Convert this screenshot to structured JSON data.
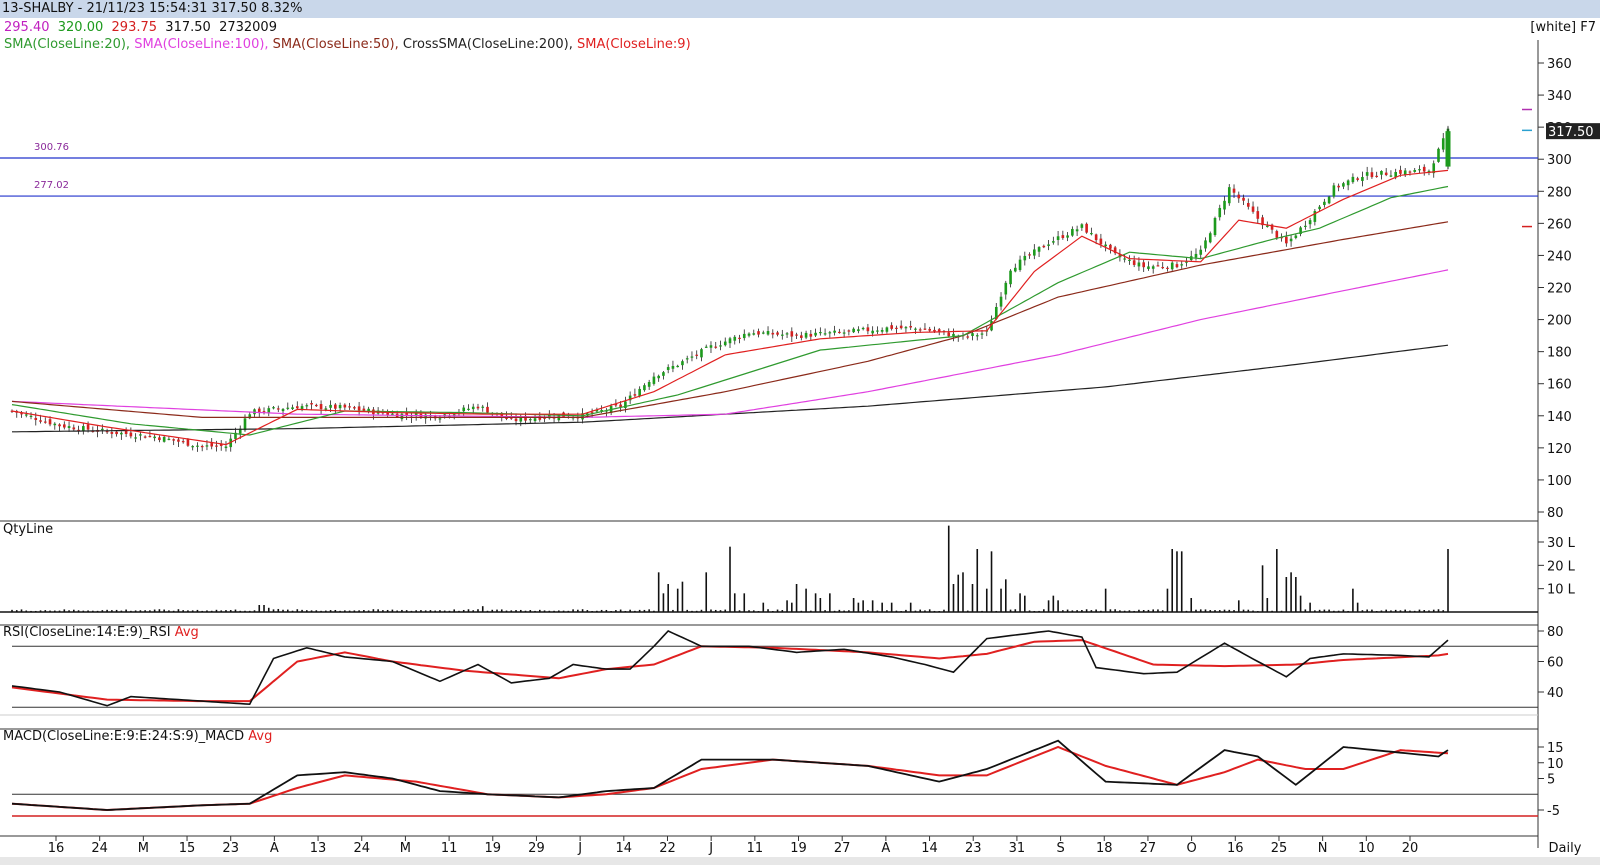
{
  "window": {
    "title": "13-SHALBY - 21/11/23 15:54:31 317.50 8.32%",
    "theme": "[white] F7"
  },
  "quote": {
    "open": "295.40",
    "high": "320.00",
    "low": "293.75",
    "close": "317.50",
    "volume": "2732009"
  },
  "indicators": [
    {
      "label": "SMA(CloseLine:20)",
      "color": "#2f9a2f"
    },
    {
      "label": "SMA(CloseLine:100)",
      "color": "#e040e0"
    },
    {
      "label": "SMA(CloseLine:50)",
      "color": "#8b2a1a"
    },
    {
      "label": "CrossSMA(CloseLine:200)",
      "color": "#222222"
    },
    {
      "label": "SMA(CloseLine:9)",
      "color": "#e02020"
    }
  ],
  "colors": {
    "up": "#1d9a1d",
    "down": "#d42020",
    "hline": "#2233cc",
    "sma9": "#e02020",
    "sma20": "#2f9a2f",
    "sma50": "#8b2a1a",
    "sma100": "#e040e0",
    "sma200": "#222222",
    "rsi": "#111111",
    "rsiavg": "#e02020"
  },
  "panels": {
    "volume": "QtyLine",
    "rsi": "RSI(CloseLine:14:E:9)_RSI",
    "rsi_avg": "Avg",
    "macd": "MACD(CloseLine:E:9:E:24:S:9)_MACD",
    "macd_avg": "Avg"
  },
  "footer": {
    "period": "Daily"
  },
  "chart_data": [
    {
      "type": "candlestick",
      "title": "13-SHALBY",
      "x_ticks": [
        "16",
        "24",
        "M",
        "15",
        "23",
        "A",
        "13",
        "24",
        "M",
        "11",
        "19",
        "29",
        "J",
        "14",
        "22",
        "J",
        "11",
        "19",
        "27",
        "A",
        "14",
        "23",
        "31",
        "S",
        "18",
        "27",
        "O",
        "16",
        "25",
        "N",
        "10",
        "20"
      ],
      "y_ticks": [
        80,
        100,
        120,
        140,
        160,
        180,
        200,
        220,
        240,
        260,
        280,
        300,
        320,
        340,
        360
      ],
      "ylim": [
        75,
        370
      ],
      "last_price": "317.50",
      "hlines": [
        {
          "label": "300.76",
          "value": 300.76
        },
        {
          "label": "277.02",
          "value": 277.02
        }
      ],
      "close_anchors": [
        [
          0,
          143
        ],
        [
          10,
          134
        ],
        [
          20,
          130
        ],
        [
          30,
          127
        ],
        [
          40,
          121
        ],
        [
          45,
          121
        ],
        [
          50,
          142
        ],
        [
          60,
          146
        ],
        [
          70,
          145
        ],
        [
          80,
          141
        ],
        [
          90,
          140
        ],
        [
          98,
          146
        ],
        [
          105,
          137
        ],
        [
          113,
          140
        ],
        [
          120,
          140
        ],
        [
          128,
          146
        ],
        [
          135,
          165
        ],
        [
          140,
          172
        ],
        [
          147,
          183
        ],
        [
          155,
          192
        ],
        [
          165,
          190
        ],
        [
          175,
          192
        ],
        [
          185,
          195
        ],
        [
          192,
          194
        ],
        [
          200,
          189
        ],
        [
          205,
          192
        ],
        [
          210,
          232
        ],
        [
          218,
          248
        ],
        [
          225,
          258
        ],
        [
          232,
          240
        ],
        [
          238,
          233
        ],
        [
          245,
          234
        ],
        [
          250,
          242
        ],
        [
          256,
          282
        ],
        [
          262,
          263
        ],
        [
          268,
          247
        ],
        [
          272,
          260
        ],
        [
          278,
          282
        ],
        [
          284,
          290
        ],
        [
          292,
          292
        ],
        [
          298,
          293
        ],
        [
          302,
          317.5
        ]
      ],
      "sma9": [
        [
          0,
          143
        ],
        [
          20,
          133
        ],
        [
          45,
          122
        ],
        [
          60,
          144
        ],
        [
          80,
          142
        ],
        [
          100,
          141
        ],
        [
          120,
          141
        ],
        [
          135,
          155
        ],
        [
          150,
          178
        ],
        [
          170,
          188
        ],
        [
          190,
          192
        ],
        [
          205,
          193
        ],
        [
          215,
          230
        ],
        [
          225,
          252
        ],
        [
          235,
          238
        ],
        [
          250,
          236
        ],
        [
          258,
          262
        ],
        [
          268,
          257
        ],
        [
          280,
          275
        ],
        [
          292,
          290
        ],
        [
          302,
          293
        ]
      ],
      "sma20": [
        [
          0,
          147
        ],
        [
          25,
          135
        ],
        [
          50,
          128
        ],
        [
          70,
          143
        ],
        [
          95,
          142
        ],
        [
          120,
          140
        ],
        [
          140,
          153
        ],
        [
          170,
          181
        ],
        [
          200,
          190
        ],
        [
          220,
          223
        ],
        [
          235,
          242
        ],
        [
          250,
          238
        ],
        [
          265,
          250
        ],
        [
          275,
          257
        ],
        [
          290,
          276
        ],
        [
          302,
          283
        ]
      ],
      "sma50": [
        [
          0,
          149
        ],
        [
          40,
          139
        ],
        [
          70,
          139
        ],
        [
          100,
          139
        ],
        [
          120,
          139
        ],
        [
          150,
          155
        ],
        [
          180,
          174
        ],
        [
          200,
          190
        ],
        [
          220,
          214
        ],
        [
          250,
          234
        ],
        [
          280,
          250
        ],
        [
          302,
          261
        ]
      ],
      "sma100": [
        [
          0,
          149
        ],
        [
          60,
          141
        ],
        [
          120,
          139
        ],
        [
          150,
          141
        ],
        [
          180,
          155
        ],
        [
          220,
          178
        ],
        [
          250,
          200
        ],
        [
          280,
          218
        ],
        [
          302,
          231
        ]
      ],
      "sma200": [
        [
          0,
          130
        ],
        [
          60,
          132
        ],
        [
          120,
          136
        ],
        [
          180,
          146
        ],
        [
          230,
          158
        ],
        [
          270,
          172
        ],
        [
          302,
          184
        ]
      ]
    },
    {
      "type": "bar",
      "title": "QtyLine",
      "y_ticks": [
        "10 L",
        "20 L",
        "30 L"
      ],
      "ylim": [
        0,
        36
      ],
      "spikes": [
        [
          52,
          3
        ],
        [
          53,
          3
        ],
        [
          54,
          1.8
        ],
        [
          56,
          1.3
        ],
        [
          99,
          2.5
        ],
        [
          136,
          17
        ],
        [
          137,
          8
        ],
        [
          138,
          12
        ],
        [
          140,
          10
        ],
        [
          141,
          13
        ],
        [
          146,
          17
        ],
        [
          151,
          28
        ],
        [
          152,
          8
        ],
        [
          154,
          8
        ],
        [
          158,
          4
        ],
        [
          163,
          5
        ],
        [
          164,
          4
        ],
        [
          165,
          12
        ],
        [
          167,
          10
        ],
        [
          169,
          8
        ],
        [
          170,
          6
        ],
        [
          172,
          8
        ],
        [
          177,
          6
        ],
        [
          178,
          4
        ],
        [
          179,
          5
        ],
        [
          181,
          5
        ],
        [
          183,
          4
        ],
        [
          185,
          4
        ],
        [
          189,
          4
        ],
        [
          197,
          37
        ],
        [
          198,
          12
        ],
        [
          199,
          16
        ],
        [
          200,
          17
        ],
        [
          202,
          12
        ],
        [
          203,
          27
        ],
        [
          205,
          10
        ],
        [
          206,
          26
        ],
        [
          208,
          10
        ],
        [
          209,
          14
        ],
        [
          212,
          8
        ],
        [
          213,
          7
        ],
        [
          218,
          5
        ],
        [
          219,
          7
        ],
        [
          220,
          5
        ],
        [
          230,
          10
        ],
        [
          243,
          10
        ],
        [
          244,
          27
        ],
        [
          245,
          26
        ],
        [
          246,
          26
        ],
        [
          248,
          6
        ],
        [
          258,
          5
        ],
        [
          263,
          20
        ],
        [
          264,
          6
        ],
        [
          266,
          27
        ],
        [
          268,
          15
        ],
        [
          269,
          17
        ],
        [
          270,
          15
        ],
        [
          271,
          7
        ],
        [
          273,
          4
        ],
        [
          282,
          10
        ],
        [
          283,
          4
        ],
        [
          302,
          27
        ]
      ],
      "baseline": 1.0
    },
    {
      "type": "line",
      "title": "RSI(CloseLine:14:E:9)_RSI",
      "y_ticks": [
        40,
        60,
        80
      ],
      "ylim": [
        28,
        85
      ],
      "levels": [
        70,
        30
      ],
      "rsi": [
        [
          0,
          44
        ],
        [
          10,
          40
        ],
        [
          20,
          31
        ],
        [
          25,
          37
        ],
        [
          35,
          35
        ],
        [
          45,
          33
        ],
        [
          50,
          32
        ],
        [
          55,
          62
        ],
        [
          62,
          69
        ],
        [
          70,
          63
        ],
        [
          80,
          60
        ],
        [
          90,
          47
        ],
        [
          98,
          58
        ],
        [
          105,
          46
        ],
        [
          113,
          49
        ],
        [
          118,
          58
        ],
        [
          125,
          55
        ],
        [
          130,
          55
        ],
        [
          135,
          70
        ],
        [
          138,
          80
        ],
        [
          145,
          70
        ],
        [
          155,
          70
        ],
        [
          165,
          66
        ],
        [
          175,
          68
        ],
        [
          185,
          63
        ],
        [
          192,
          58
        ],
        [
          198,
          53
        ],
        [
          205,
          75
        ],
        [
          210,
          77
        ],
        [
          218,
          80
        ],
        [
          225,
          76
        ],
        [
          228,
          56
        ],
        [
          238,
          52
        ],
        [
          245,
          53
        ],
        [
          255,
          72
        ],
        [
          262,
          60
        ],
        [
          268,
          50
        ],
        [
          273,
          62
        ],
        [
          280,
          65
        ],
        [
          292,
          64
        ],
        [
          298,
          63
        ],
        [
          302,
          74
        ]
      ],
      "avg": [
        [
          0,
          43
        ],
        [
          20,
          35
        ],
        [
          40,
          34
        ],
        [
          50,
          34
        ],
        [
          60,
          60
        ],
        [
          70,
          66
        ],
        [
          80,
          60
        ],
        [
          95,
          54
        ],
        [
          115,
          49
        ],
        [
          125,
          55
        ],
        [
          135,
          58
        ],
        [
          145,
          70
        ],
        [
          160,
          69
        ],
        [
          180,
          66
        ],
        [
          195,
          62
        ],
        [
          205,
          65
        ],
        [
          215,
          73
        ],
        [
          225,
          74
        ],
        [
          240,
          58
        ],
        [
          255,
          57
        ],
        [
          270,
          58
        ],
        [
          280,
          61
        ],
        [
          300,
          64
        ],
        [
          302,
          65
        ]
      ]
    },
    {
      "type": "line",
      "title": "MACD(CloseLine:E:9:E:24:S:9)_MACD",
      "y_ticks": [
        -5,
        5,
        10,
        15
      ],
      "ylim": [
        -8,
        21
      ],
      "levels": [
        0,
        -8
      ],
      "macd": [
        [
          0,
          -3
        ],
        [
          20,
          -5
        ],
        [
          40,
          -3.5
        ],
        [
          50,
          -3
        ],
        [
          60,
          6
        ],
        [
          70,
          7
        ],
        [
          80,
          5
        ],
        [
          90,
          1
        ],
        [
          100,
          0
        ],
        [
          115,
          -1
        ],
        [
          125,
          1
        ],
        [
          135,
          2
        ],
        [
          145,
          11
        ],
        [
          160,
          11
        ],
        [
          180,
          9
        ],
        [
          195,
          4
        ],
        [
          205,
          8
        ],
        [
          220,
          17
        ],
        [
          230,
          4
        ],
        [
          245,
          3
        ],
        [
          255,
          14
        ],
        [
          262,
          12
        ],
        [
          270,
          3
        ],
        [
          280,
          15
        ],
        [
          300,
          12
        ],
        [
          302,
          14
        ]
      ],
      "avg": [
        [
          0,
          -3
        ],
        [
          20,
          -5
        ],
        [
          40,
          -3.5
        ],
        [
          50,
          -3
        ],
        [
          60,
          2
        ],
        [
          70,
          6
        ],
        [
          85,
          4
        ],
        [
          100,
          0
        ],
        [
          115,
          -1
        ],
        [
          125,
          0
        ],
        [
          135,
          2
        ],
        [
          145,
          8
        ],
        [
          160,
          11
        ],
        [
          180,
          9
        ],
        [
          195,
          6
        ],
        [
          205,
          6
        ],
        [
          220,
          15
        ],
        [
          230,
          9
        ],
        [
          245,
          3
        ],
        [
          255,
          7
        ],
        [
          262,
          11
        ],
        [
          272,
          8
        ],
        [
          280,
          8
        ],
        [
          292,
          14
        ],
        [
          302,
          13
        ]
      ]
    }
  ]
}
